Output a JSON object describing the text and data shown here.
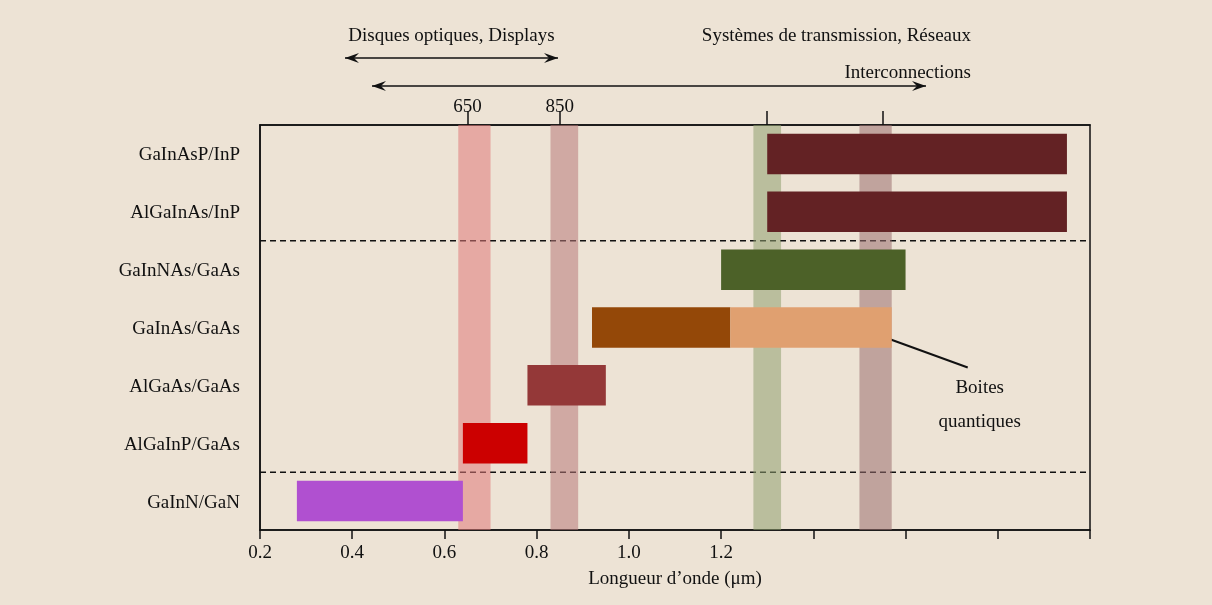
{
  "chart_data": {
    "type": "bar",
    "orientation": "horizontal",
    "xlabel": "Longueur d’onde (μm)",
    "categories": [
      "GaInAsP/InP",
      "AlGaInAs/InP",
      "GaInNAs/GaAs",
      "GaInAs/GaAs",
      "AlGaAs/GaAs",
      "AlGaInP/GaAs",
      "GaInN/GaN"
    ],
    "series": [
      {
        "colors": [
          "#632224",
          "#632224",
          "#4c6128",
          "#944808",
          "#943838",
          "#cc0000",
          "#b050d0"
        ],
        "base": [
          1.3,
          1.3,
          1.2,
          0.92,
          0.78,
          0.64,
          0.28
        ],
        "values": [
          0.65,
          0.65,
          0.4,
          0.3,
          0.17,
          0.14,
          0.36
        ]
      },
      {
        "name": "Boites quantiques",
        "color": "#e0a070",
        "base": [
          null,
          null,
          null,
          1.22,
          null,
          null,
          null
        ],
        "values": [
          null,
          null,
          null,
          0.35,
          null,
          null,
          null
        ]
      }
    ],
    "xlim": [
      0.2,
      2.0
    ],
    "xticks": [
      0.2,
      0.4,
      0.6,
      0.8,
      {
        "value": 1,
        "label": "1.0"
      },
      1.2,
      {
        "value": 1.4,
        "label": null
      },
      {
        "value": 1.6,
        "label": null
      },
      {
        "value": 1.8,
        "label": null
      },
      {
        "value": 2,
        "label": null
      }
    ],
    "x2lim": [
      200,
      2000
    ],
    "x2ticks": [
      650,
      850,
      {
        "value": 1300,
        "label": null
      },
      {
        "value": 1550,
        "label": null
      }
    ],
    "annotations": [
      "Disques optiques, Displays",
      "Systèmes de transmission, Réseaux\nInterconnections"
    ],
    "bands": [
      {
        "axis": "x",
        "from": 0.63,
        "to": 0.7,
        "color": "#e07a7a"
      },
      {
        "axis": "x",
        "from": 0.83,
        "to": 0.89,
        "color": "#b87a7a"
      },
      {
        "axis": "x",
        "from": 1.27,
        "to": 1.33,
        "color": "#8fa070"
      },
      {
        "axis": "x",
        "from": 1.5,
        "to": 1.57,
        "color": "#9a7070"
      }
    ],
    "grid": false,
    "legend": false
  }
}
